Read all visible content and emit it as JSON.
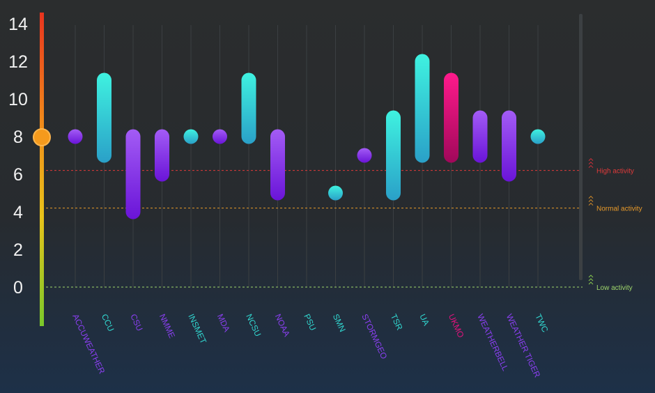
{
  "chart_data": {
    "type": "range",
    "ylim": [
      0,
      14
    ],
    "yticks": [
      0,
      2,
      4,
      6,
      8,
      10,
      12,
      14
    ],
    "grid": true,
    "current_value": 8,
    "categories": [
      {
        "name": "ACCUWEATHER",
        "low": 8,
        "high": 8,
        "color": "#8a3ff0"
      },
      {
        "name": "CCU",
        "low": 7,
        "high": 11,
        "color": "#31d6cf"
      },
      {
        "name": "CSU",
        "low": 4,
        "high": 8,
        "color": "#8a3ff0"
      },
      {
        "name": "NMME",
        "low": 6,
        "high": 8,
        "color": "#8a3ff0"
      },
      {
        "name": "INSMET",
        "low": 8,
        "high": 8,
        "color": "#31d6cf"
      },
      {
        "name": "MDA",
        "low": 8,
        "high": 8,
        "color": "#8a3ff0"
      },
      {
        "name": "NCSU",
        "low": 8,
        "high": 11,
        "color": "#31d6cf"
      },
      {
        "name": "NOAA",
        "low": 5,
        "high": 8,
        "color": "#8a3ff0"
      },
      {
        "name": "PSU",
        "low": null,
        "high": null,
        "color": "#31d6cf"
      },
      {
        "name": "SMN",
        "low": 5,
        "high": 5,
        "color": "#31d6cf"
      },
      {
        "name": "STORMGEO",
        "low": 7,
        "high": 7,
        "color": "#8a3ff0"
      },
      {
        "name": "TSR",
        "low": 5,
        "high": 9,
        "color": "#31d6cf"
      },
      {
        "name": "UA",
        "low": 7,
        "high": 12,
        "color": "#31d6cf"
      },
      {
        "name": "UKMO",
        "low": 7,
        "high": 11,
        "color": "#e5127e"
      },
      {
        "name": "WEATHERBELL",
        "low": 7,
        "high": 9,
        "color": "#8a3ff0"
      },
      {
        "name": "WEATHER TIGER",
        "low": 6,
        "high": 9,
        "color": "#8a3ff0"
      },
      {
        "name": "TWC",
        "low": 8,
        "high": 8,
        "color": "#31d6cf"
      }
    ],
    "reference_lines": [
      {
        "label": "High activity",
        "value": 6.2,
        "color": "#e03a3a"
      },
      {
        "label": "Normal activity",
        "value": 4.2,
        "color": "#e89a2a"
      },
      {
        "label": "Low activity",
        "value": 0,
        "color": "#9fd66b"
      }
    ]
  }
}
